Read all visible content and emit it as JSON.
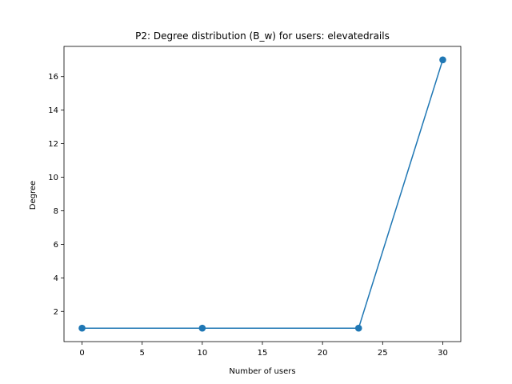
{
  "chart_data": {
    "type": "line",
    "title": "P2: Degree distribution (B_w) for users: elevatedrails",
    "xlabel": "Number of users",
    "ylabel": "Degree",
    "x": [
      0,
      10,
      23,
      30
    ],
    "series": [
      {
        "values": [
          1,
          1,
          1,
          17
        ]
      }
    ],
    "xlim": [
      -1.5,
      31.5
    ],
    "ylim": [
      0.2,
      17.8
    ],
    "xticks": [
      0,
      5,
      10,
      15,
      20,
      25,
      30
    ],
    "yticks": [
      2,
      4,
      6,
      8,
      10,
      12,
      14,
      16
    ],
    "grid": false,
    "marker": "circle",
    "color": "#1f77b4"
  }
}
